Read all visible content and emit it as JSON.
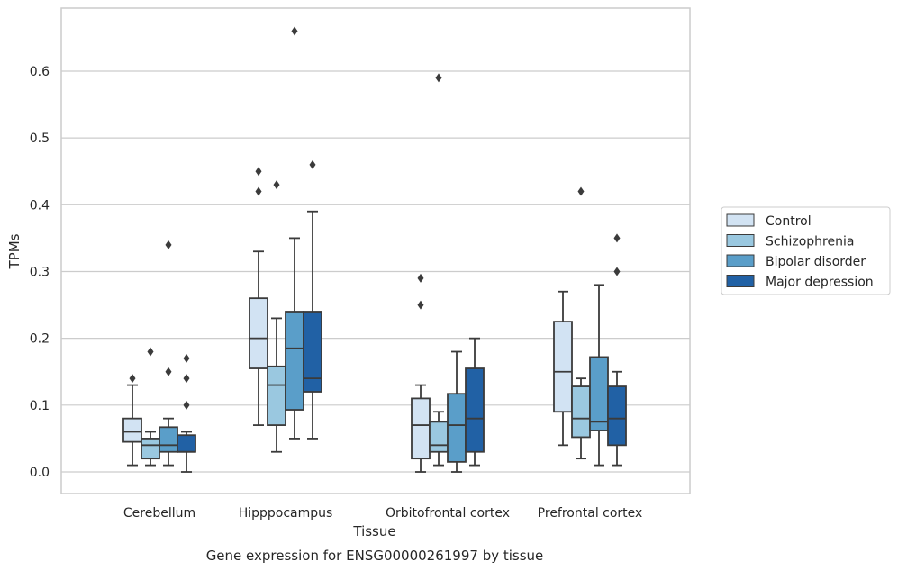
{
  "chart_data": {
    "type": "boxplot",
    "title": "Gene expression for ENSG00000261997 by tissue",
    "xlabel": "Tissue",
    "ylabel": "TPMs",
    "ylim": [
      -0.03,
      0.695
    ],
    "yticks": [
      0.0,
      0.1,
      0.2,
      0.3,
      0.4,
      0.5,
      0.6
    ],
    "ytick_labels": [
      "0.0",
      "0.1",
      "0.2",
      "0.3",
      "0.4",
      "0.5",
      "0.6"
    ],
    "categories": [
      "Cerebellum",
      "Hipppocampus",
      "Orbitofrontal cortex",
      "Prefrontal cortex"
    ],
    "grid": "horizontal",
    "legend_position": "right",
    "series": [
      {
        "name": "Control",
        "color": "#d2e3f3",
        "boxes": [
          {
            "whislo": 0.01,
            "q1": 0.045,
            "med": 0.06,
            "q3": 0.08,
            "whishi": 0.13,
            "fliers": [
              0.14
            ]
          },
          {
            "whislo": 0.07,
            "q1": 0.155,
            "med": 0.2,
            "q3": 0.26,
            "whishi": 0.33,
            "fliers": [
              0.42,
              0.45
            ]
          },
          {
            "whislo": 0.0,
            "q1": 0.02,
            "med": 0.07,
            "q3": 0.11,
            "whishi": 0.13,
            "fliers": [
              0.25,
              0.29
            ]
          },
          {
            "whislo": 0.04,
            "q1": 0.09,
            "med": 0.15,
            "q3": 0.225,
            "whishi": 0.27,
            "fliers": []
          }
        ]
      },
      {
        "name": "Schizophrenia",
        "color": "#9ac8e0",
        "boxes": [
          {
            "whislo": 0.01,
            "q1": 0.02,
            "med": 0.04,
            "q3": 0.05,
            "whishi": 0.06,
            "fliers": [
              0.18
            ]
          },
          {
            "whislo": 0.03,
            "q1": 0.07,
            "med": 0.13,
            "q3": 0.158,
            "whishi": 0.23,
            "fliers": [
              0.43
            ]
          },
          {
            "whislo": 0.01,
            "q1": 0.03,
            "med": 0.04,
            "q3": 0.075,
            "whishi": 0.09,
            "fliers": [
              0.59
            ]
          },
          {
            "whislo": 0.02,
            "q1": 0.052,
            "med": 0.08,
            "q3": 0.128,
            "whishi": 0.14,
            "fliers": [
              0.42
            ]
          }
        ]
      },
      {
        "name": "Bipolar disorder",
        "color": "#5a9ec9",
        "boxes": [
          {
            "whislo": 0.01,
            "q1": 0.03,
            "med": 0.04,
            "q3": 0.067,
            "whishi": 0.08,
            "fliers": [
              0.15,
              0.34
            ]
          },
          {
            "whislo": 0.05,
            "q1": 0.093,
            "med": 0.185,
            "q3": 0.24,
            "whishi": 0.35,
            "fliers": [
              0.66
            ]
          },
          {
            "whislo": 0.0,
            "q1": 0.015,
            "med": 0.07,
            "q3": 0.117,
            "whishi": 0.18,
            "fliers": []
          },
          {
            "whislo": 0.01,
            "q1": 0.062,
            "med": 0.075,
            "q3": 0.172,
            "whishi": 0.28,
            "fliers": []
          }
        ]
      },
      {
        "name": "Major depression",
        "color": "#2161a5",
        "boxes": [
          {
            "whislo": 0.0,
            "q1": 0.03,
            "med": 0.03,
            "q3": 0.055,
            "whishi": 0.06,
            "fliers": [
              0.1,
              0.14,
              0.17
            ]
          },
          {
            "whislo": 0.05,
            "q1": 0.12,
            "med": 0.14,
            "q3": 0.24,
            "whishi": 0.39,
            "fliers": [
              0.46
            ]
          },
          {
            "whislo": 0.01,
            "q1": 0.03,
            "med": 0.08,
            "q3": 0.155,
            "whishi": 0.2,
            "fliers": []
          },
          {
            "whislo": 0.01,
            "q1": 0.04,
            "med": 0.08,
            "q3": 0.128,
            "whishi": 0.15,
            "fliers": [
              0.3,
              0.35
            ]
          }
        ]
      }
    ]
  }
}
